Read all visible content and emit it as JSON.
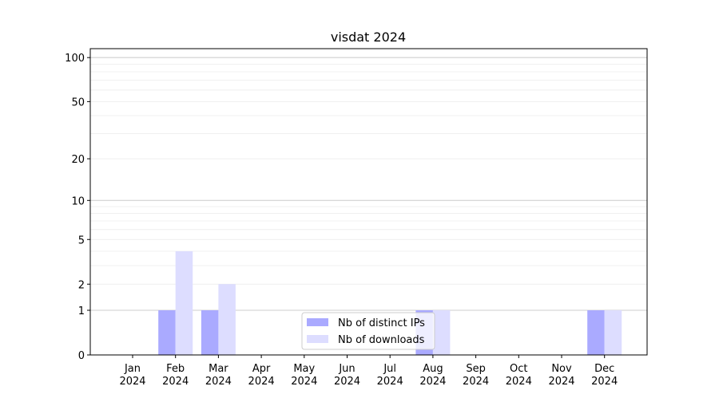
{
  "chart_data": {
    "type": "bar",
    "title": "visdat 2024",
    "xlabel": "",
    "ylabel": "",
    "yscale": "log(1+y)",
    "ylim": [
      0,
      115
    ],
    "yticks": [
      0,
      1,
      2,
      5,
      10,
      20,
      50,
      100
    ],
    "grid": true,
    "legend_position": "bottom-center",
    "categories": [
      "Jan\n2024",
      "Feb\n2024",
      "Mar\n2024",
      "Apr\n2024",
      "May\n2024",
      "Jun\n2024",
      "Jul\n2024",
      "Aug\n2024",
      "Sep\n2024",
      "Oct\n2024",
      "Nov\n2024",
      "Dec\n2024"
    ],
    "series": [
      {
        "name": "Nb of distinct IPs",
        "color": "#aaaaff",
        "values": [
          0,
          1,
          1,
          0,
          0,
          0,
          0,
          1,
          0,
          0,
          0,
          1
        ]
      },
      {
        "name": "Nb of downloads",
        "color": "#ddddff",
        "values": [
          0,
          4,
          2,
          0,
          0,
          0,
          0,
          1,
          0,
          0,
          0,
          1
        ]
      }
    ]
  }
}
